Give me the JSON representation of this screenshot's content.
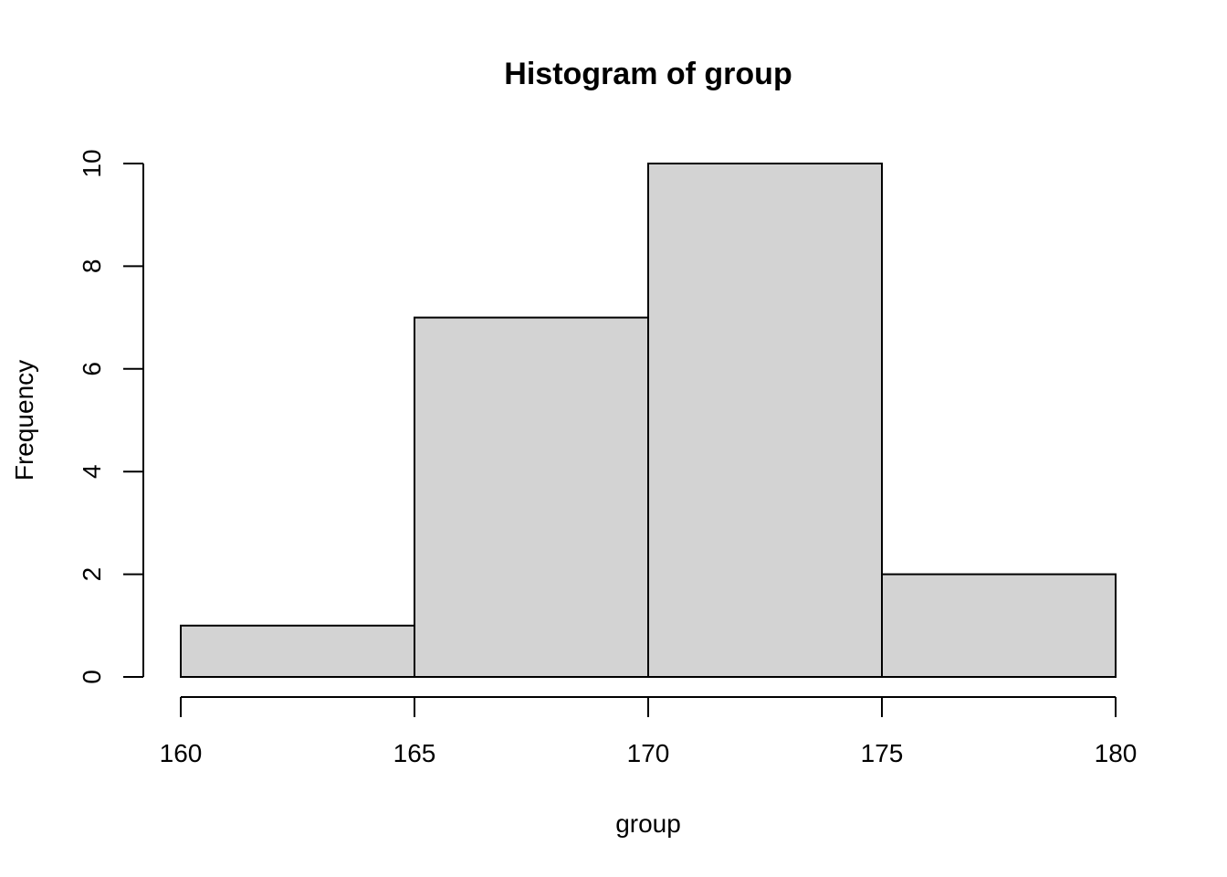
{
  "chart_data": {
    "type": "bar",
    "title": "Histogram of group",
    "xlabel": "group",
    "ylabel": "Frequency",
    "bins": [
      {
        "start": 160,
        "end": 165,
        "count": 1
      },
      {
        "start": 165,
        "end": 170,
        "count": 7
      },
      {
        "start": 170,
        "end": 175,
        "count": 10
      },
      {
        "start": 175,
        "end": 180,
        "count": 2
      }
    ],
    "xlim": [
      160,
      180
    ],
    "ylim": [
      0,
      10
    ],
    "x_ticks": [
      160,
      165,
      170,
      175,
      180
    ],
    "y_ticks": [
      0,
      2,
      4,
      6,
      8,
      10
    ],
    "bar_color": "#d3d3d3",
    "border_color": "#000000",
    "grid": false
  }
}
